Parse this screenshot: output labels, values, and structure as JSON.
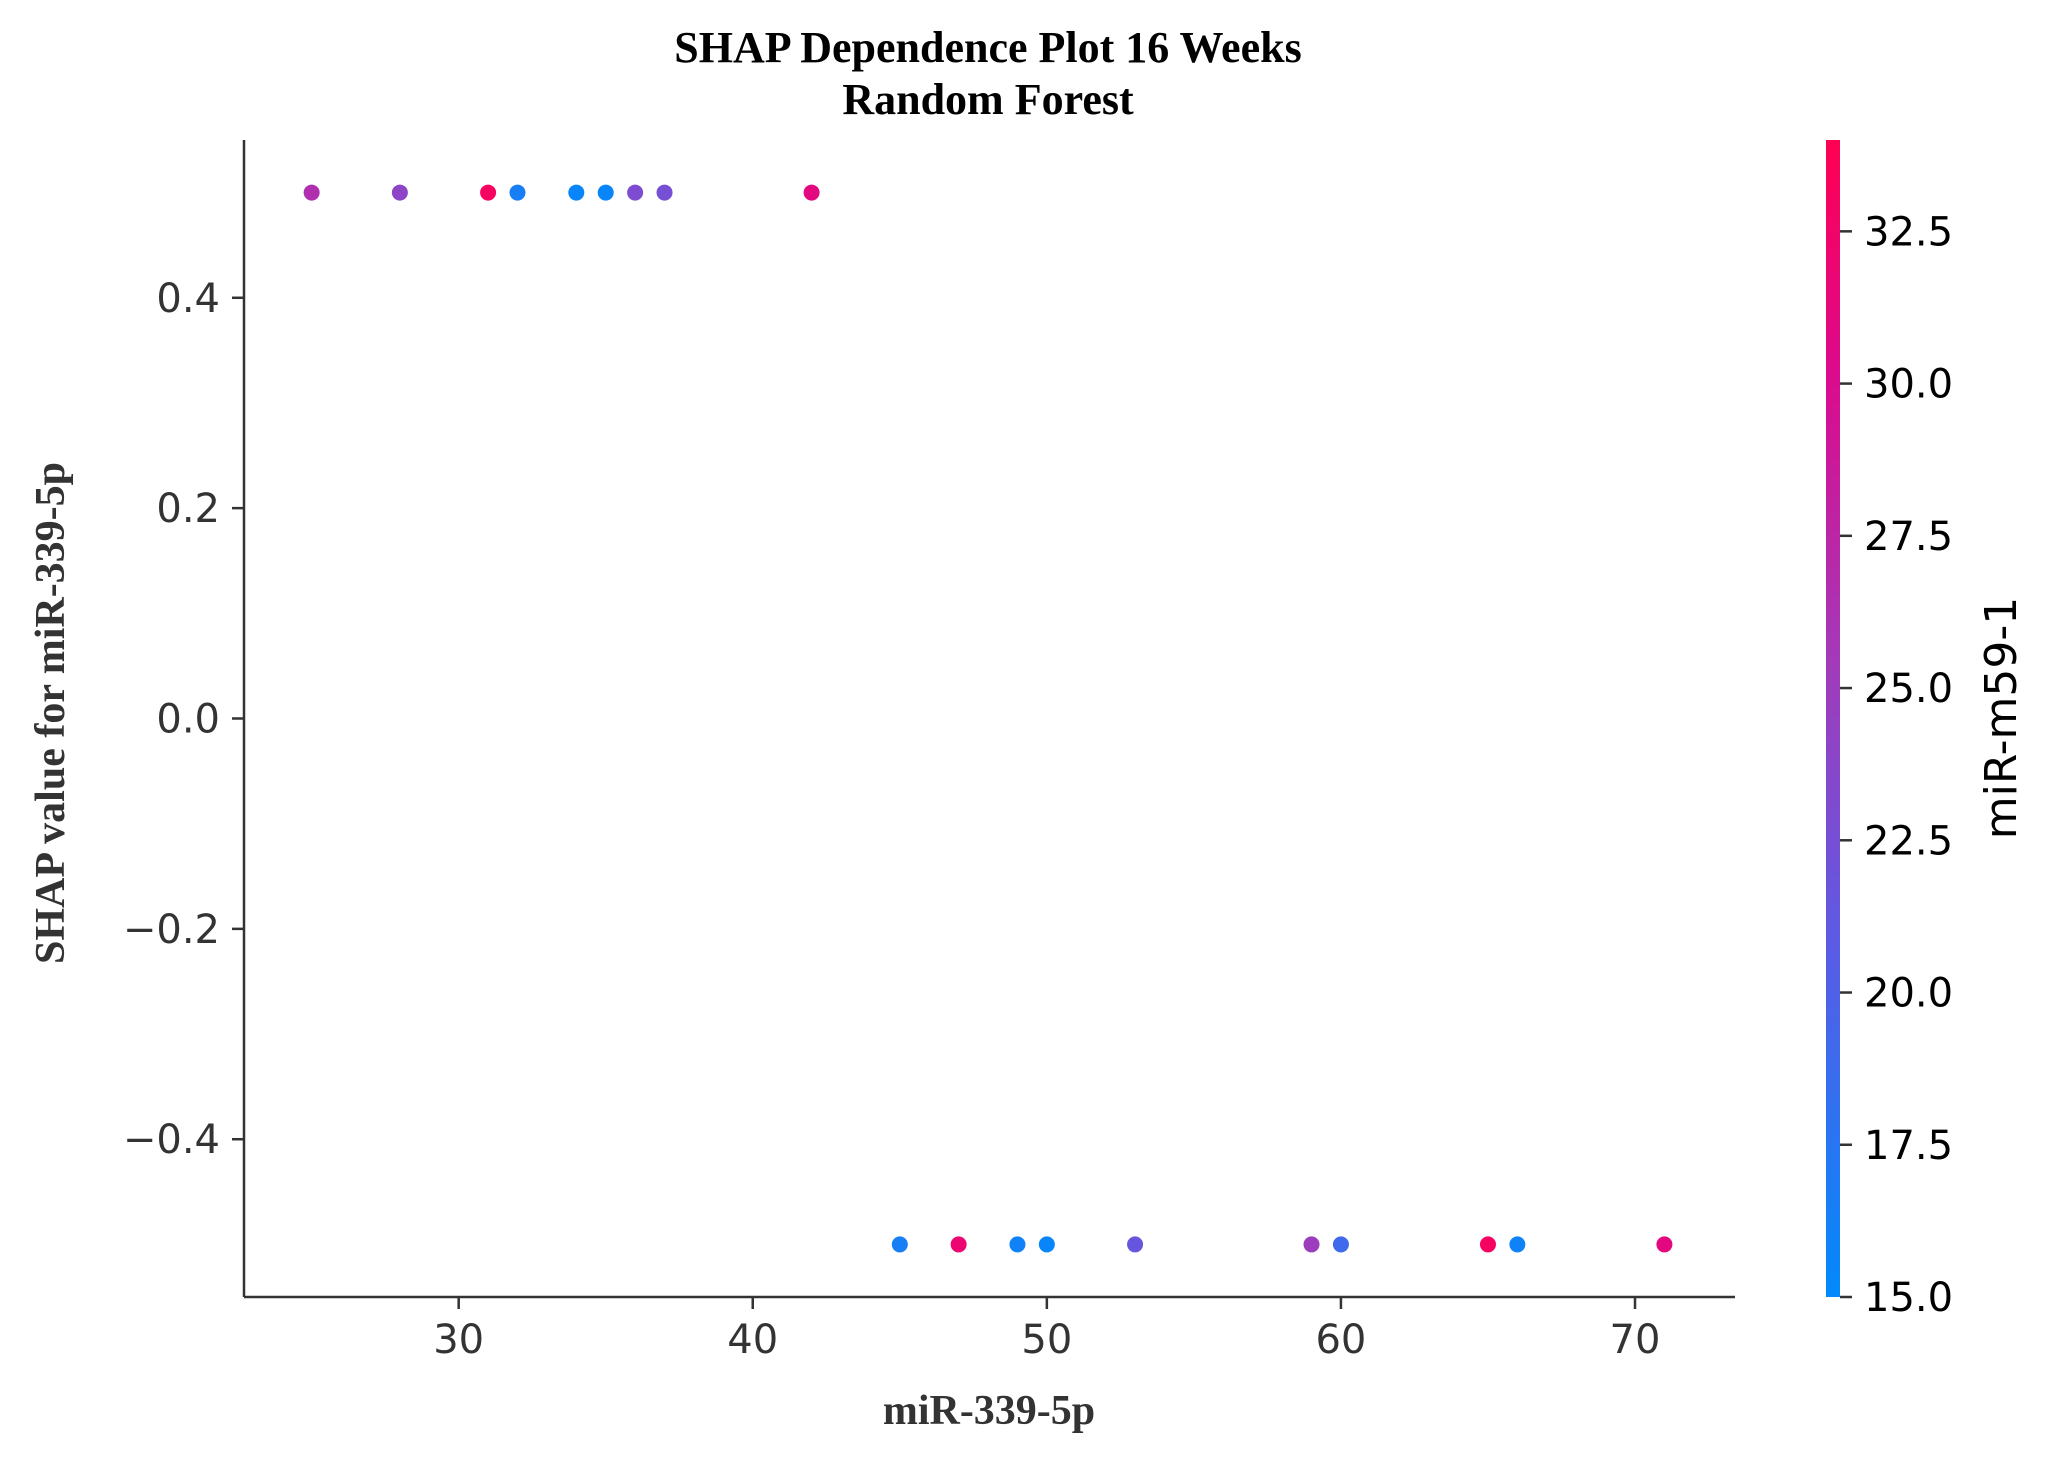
{
  "chart_data": {
    "type": "scatter",
    "title": "SHAP Dependence Plot 16 Weeks",
    "subtitle": "Random Forest",
    "xlabel": "miR-339-5p",
    "ylabel": "SHAP value for miR-339-5p",
    "xlim": [
      22.7,
      73.4
    ],
    "ylim": [
      -0.55,
      0.55
    ],
    "xticks": [
      30,
      40,
      50,
      60,
      70
    ],
    "xtick_labels": [
      "30",
      "40",
      "50",
      "60",
      "70"
    ],
    "yticks": [
      0.4,
      0.2,
      0.0,
      -0.2,
      -0.4
    ],
    "ytick_labels": [
      "0.4",
      "0.2",
      "0.0",
      "−0.2",
      "−0.4"
    ],
    "grid": false,
    "colorbar": {
      "label": "miR-m59-1",
      "range": [
        15.0,
        34.0
      ],
      "ticks": [
        15.0,
        17.5,
        20.0,
        22.5,
        25.0,
        27.5,
        30.0,
        32.5
      ],
      "tick_labels": [
        "15.0",
        "17.5",
        "20.0",
        "22.5",
        "25.0",
        "27.5",
        "30.0",
        "32.5"
      ],
      "colormap_stops": [
        {
          "offset": 0.0,
          "color": "#008afb"
        },
        {
          "offset": 0.3,
          "color": "#5a5ce6"
        },
        {
          "offset": 0.55,
          "color": "#a33ab9"
        },
        {
          "offset": 0.8,
          "color": "#dc0a8c"
        },
        {
          "offset": 1.0,
          "color": "#ff0052"
        }
      ]
    },
    "points": [
      {
        "x": 25,
        "y": 0.5,
        "c": 26.5
      },
      {
        "x": 28,
        "y": 0.5,
        "c": 24.0
      },
      {
        "x": 31,
        "y": 0.5,
        "c": 33.0
      },
      {
        "x": 32,
        "y": 0.5,
        "c": 16.5
      },
      {
        "x": 34,
        "y": 0.5,
        "c": 15.5
      },
      {
        "x": 35,
        "y": 0.5,
        "c": 15.5
      },
      {
        "x": 36,
        "y": 0.5,
        "c": 23.0
      },
      {
        "x": 37,
        "y": 0.5,
        "c": 22.5
      },
      {
        "x": 42,
        "y": 0.5,
        "c": 31.0
      },
      {
        "x": 45,
        "y": -0.5,
        "c": 16.5
      },
      {
        "x": 47,
        "y": -0.5,
        "c": 32.0
      },
      {
        "x": 49,
        "y": -0.5,
        "c": 16.0
      },
      {
        "x": 50,
        "y": -0.5,
        "c": 15.5
      },
      {
        "x": 53,
        "y": -0.5,
        "c": 21.5
      },
      {
        "x": 59,
        "y": -0.5,
        "c": 25.0
      },
      {
        "x": 60,
        "y": -0.5,
        "c": 19.0
      },
      {
        "x": 65,
        "y": -0.5,
        "c": 33.0
      },
      {
        "x": 66,
        "y": -0.5,
        "c": 16.0
      },
      {
        "x": 71,
        "y": -0.5,
        "c": 31.0
      }
    ]
  }
}
